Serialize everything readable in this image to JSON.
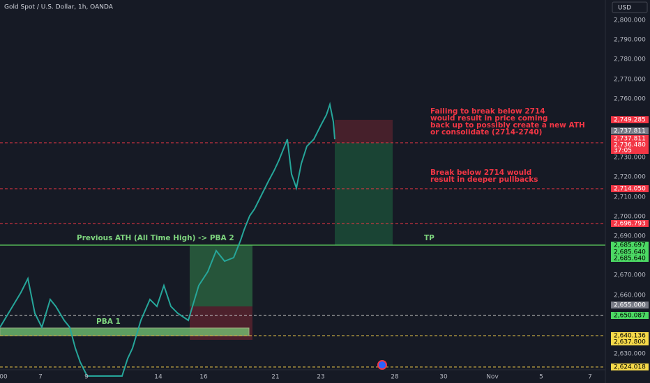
{
  "header": {
    "title": "Gold Spot / U.S. Dollar, 1h, OANDA",
    "currency": "USD"
  },
  "price_axis": [
    "2,800.000",
    "2,790.000",
    "2,780.000",
    "2,770.000",
    "2,760.000",
    "2,730.000",
    "2,720.000",
    "2,710.000",
    "2,700.000",
    "2,690.000",
    "2,670.000",
    "2,660.000",
    "2,630.000"
  ],
  "price_tags": [
    {
      "label": "2,749.285",
      "kind": "red"
    },
    {
      "label": "2,737.811",
      "kind": "gray"
    },
    {
      "label": "2,737.811",
      "kind": "red"
    },
    {
      "label": "2,736.480",
      "kind": "red"
    },
    {
      "label": "37:05",
      "kind": "red"
    },
    {
      "label": "2,714.050",
      "kind": "red"
    },
    {
      "label": "2,696.793",
      "kind": "red"
    },
    {
      "label": "2,685.697",
      "kind": "green"
    },
    {
      "label": "2,685.640",
      "kind": "green"
    },
    {
      "label": "2,685.640",
      "kind": "green"
    },
    {
      "label": "2,655.000",
      "kind": "gray"
    },
    {
      "label": "2,650.087",
      "kind": "green"
    },
    {
      "label": "2,640.136",
      "kind": "yellow"
    },
    {
      "label": "2,637.800",
      "kind": "yellow"
    },
    {
      "label": "2,624.018",
      "kind": "yellow"
    }
  ],
  "time_axis": [
    "00",
    "7",
    "9",
    "14",
    "16",
    "21",
    "23",
    "28",
    "30",
    "Nov",
    "5",
    "7"
  ],
  "annotations": {
    "upper_note": [
      "Failing to break below 2714",
      "would result in price coming",
      "back up to possibly create a new ATH",
      "or consolidate (2714-2740)"
    ],
    "lower_note": [
      "Break below 2714 would",
      "result in deeper pullbacks"
    ],
    "ath_label": "Previous ATH (All Time High) -> PBA 2",
    "tp_label": "TP",
    "pba1_label": "PBA 1"
  }
}
